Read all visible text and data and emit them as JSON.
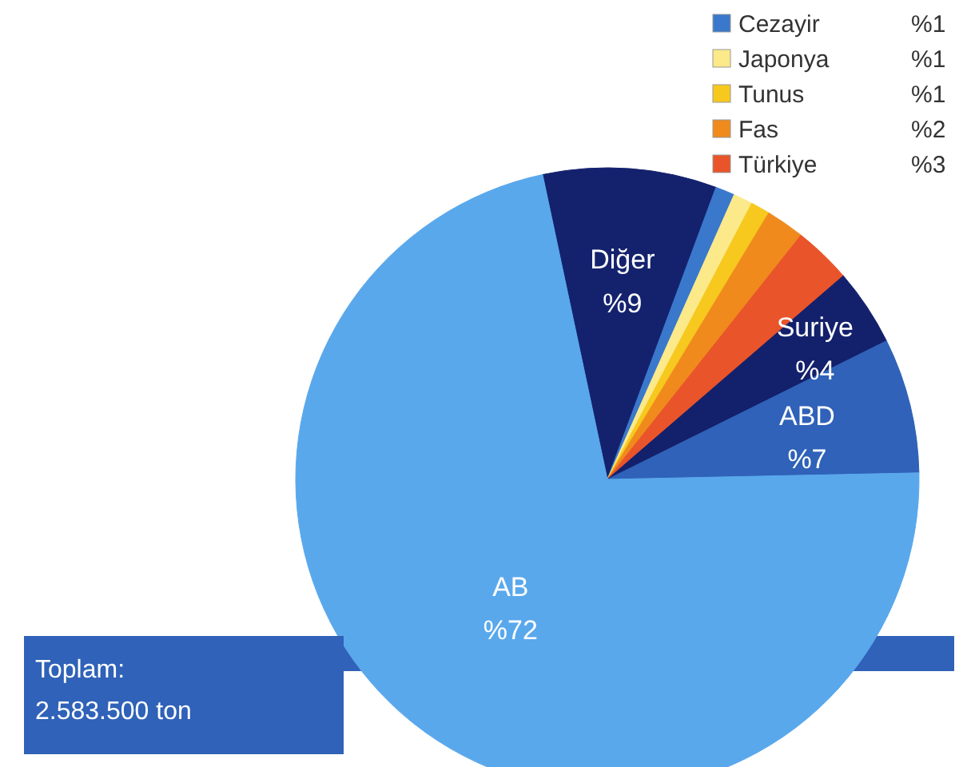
{
  "chart_data": {
    "type": "pie",
    "categories": [
      "Diğer",
      "Cezayir",
      "Japonya",
      "Tunus",
      "Fas",
      "Türkiye",
      "Suriye",
      "ABD",
      "AB"
    ],
    "values": [
      9,
      1,
      1,
      1,
      2,
      3,
      4,
      7,
      72
    ],
    "value_labels": [
      "%9",
      "%1",
      "%1",
      "%1",
      "%2",
      "%3",
      "%4",
      "%7",
      "%72"
    ],
    "colors": [
      "#14226e",
      "#3a78cc",
      "#fbe98a",
      "#f7c81e",
      "#f08a1c",
      "#e9542a",
      "#13206b",
      "#2f62b8",
      "#5aa8ec"
    ],
    "legend": "top right",
    "annotations": [
      "Toplam:",
      "2.583.500 ton"
    ]
  }
}
